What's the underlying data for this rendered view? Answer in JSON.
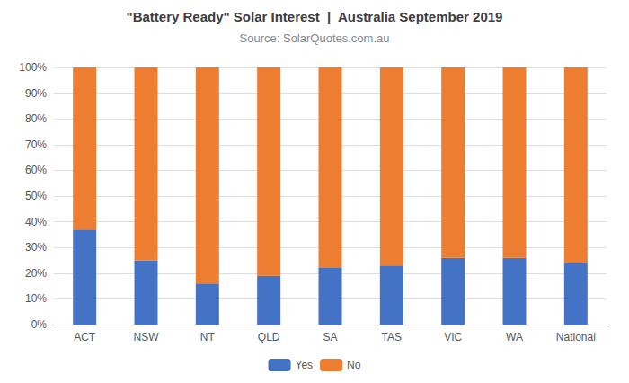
{
  "chart_data": {
    "type": "bar",
    "title": "\"Battery Ready\" Solar Interest  |  Australia September 2019",
    "subtitle": "Source: SolarQuotes.com.au",
    "categories": [
      "ACT",
      "NSW",
      "NT",
      "QLD",
      "SA",
      "TAS",
      "VIC",
      "WA",
      "National"
    ],
    "series": [
      {
        "name": "Yes",
        "color": "#4472C4",
        "values": [
          37,
          25,
          16,
          19,
          22,
          23,
          26,
          26,
          24
        ]
      },
      {
        "name": "No",
        "color": "#ED7D31",
        "values": [
          63,
          75,
          84,
          81,
          78,
          77,
          74,
          74,
          76
        ]
      }
    ],
    "stacked": true,
    "ylim": [
      0,
      100
    ],
    "yticks": [
      {
        "value": 0,
        "label": "0%"
      },
      {
        "value": 10,
        "label": "10%"
      },
      {
        "value": 20,
        "label": "20%"
      },
      {
        "value": 30,
        "label": "30%"
      },
      {
        "value": 40,
        "label": "40%"
      },
      {
        "value": 50,
        "label": "50%"
      },
      {
        "value": 60,
        "label": "60%"
      },
      {
        "value": 70,
        "label": "70%"
      },
      {
        "value": 80,
        "label": "80%"
      },
      {
        "value": 90,
        "label": "90%"
      },
      {
        "value": 100,
        "label": "100%"
      }
    ],
    "grid": true,
    "legend": "bottom"
  }
}
